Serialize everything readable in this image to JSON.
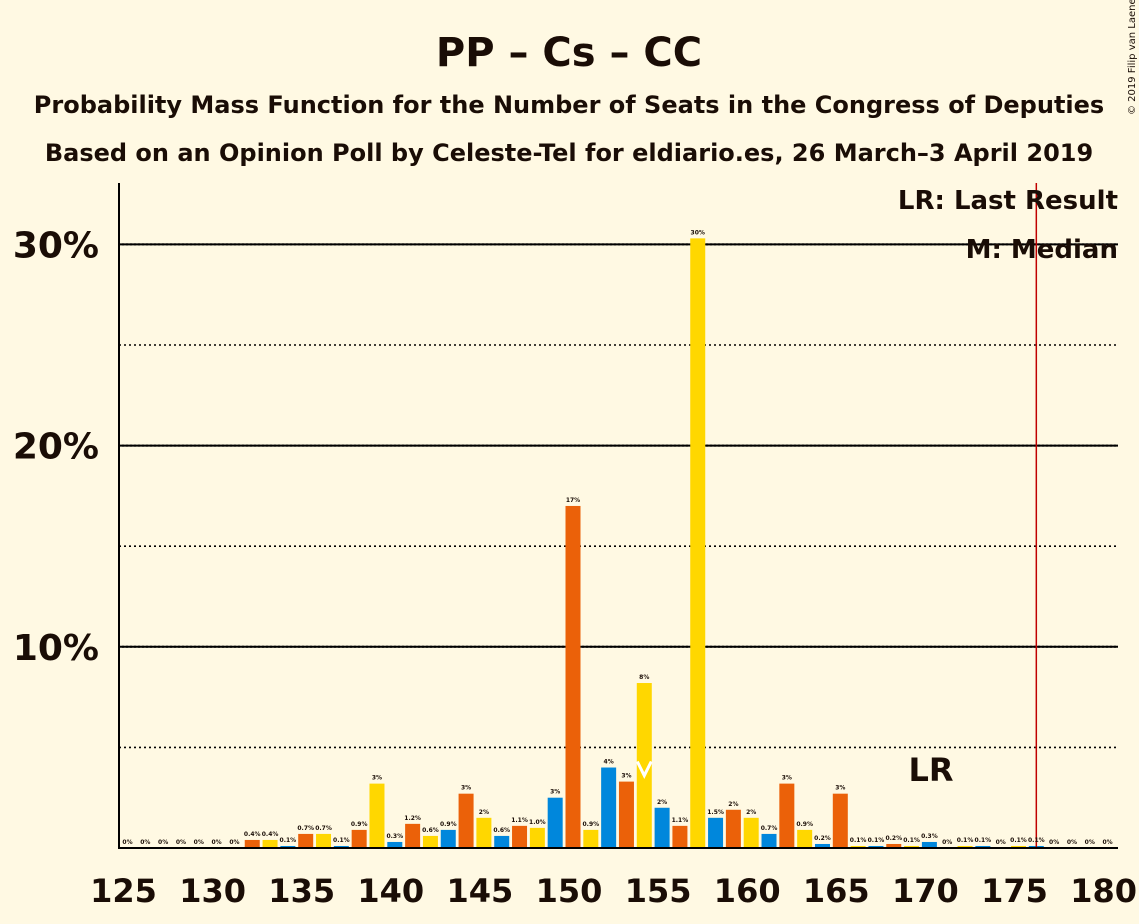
{
  "chart_data": {
    "type": "bar",
    "title": "PP – Cs – CC",
    "subtitle1": "Probability Mass Function for the Number of Seats in the Congress of Deputies",
    "subtitle2": "Based on an Opinion Poll by Celeste-Tel for eldiario.es, 26 March–3 April 2019",
    "copyright": "© 2019 Filip van Laenen",
    "legend": {
      "lr": "LR: Last Result",
      "median": "M: Median",
      "placement": "top-right"
    },
    "lr_label": "LR",
    "median_marker": "M",
    "last_result": 176,
    "median": 154,
    "xlim": [
      125,
      180
    ],
    "ylim": [
      0,
      33
    ],
    "x_ticks": [
      "125",
      "130",
      "135",
      "140",
      "145",
      "150",
      "155",
      "160",
      "165",
      "170",
      "175",
      "180"
    ],
    "y_ticks": [
      "10%",
      "20%",
      "30%"
    ],
    "colors": [
      "#0087DC",
      "#EB6109",
      "#FFD700"
    ],
    "x": [
      125,
      126,
      127,
      128,
      129,
      130,
      131,
      132,
      133,
      134,
      135,
      136,
      137,
      138,
      139,
      140,
      141,
      142,
      143,
      144,
      145,
      146,
      147,
      148,
      149,
      150,
      151,
      152,
      153,
      154,
      155,
      156,
      157,
      158,
      159,
      160,
      161,
      162,
      163,
      164,
      165,
      166,
      167,
      168,
      169,
      170,
      171,
      172,
      173,
      174,
      175,
      176,
      177,
      178,
      179,
      180
    ],
    "values": [
      0,
      0,
      0,
      0,
      0,
      0,
      0,
      0.4,
      0.4,
      0.1,
      0.7,
      0.7,
      0.1,
      0.9,
      3.2,
      0.3,
      1.2,
      0.6,
      0.9,
      2.7,
      1.5,
      0.6,
      1.1,
      1.0,
      2.5,
      17.0,
      0.9,
      4.0,
      3.3,
      8.2,
      2.0,
      1.1,
      30.3,
      1.5,
      1.9,
      1.5,
      0.7,
      3.2,
      0.9,
      0.2,
      2.7,
      0.1,
      0.1,
      0.2,
      0.1,
      0.3,
      0,
      0.1,
      0.1,
      0,
      0.1,
      0.1,
      0,
      0,
      0,
      0
    ],
    "labels": [
      "0%",
      "0%",
      "0%",
      "0%",
      "0%",
      "0%",
      "0%",
      "0.4%",
      "0.4%",
      "0.1%",
      "0.7%",
      "0.7%",
      "0.1%",
      "0.9%",
      "3%",
      "0.3%",
      "1.2%",
      "0.6%",
      "0.9%",
      "3%",
      "2%",
      "0.6%",
      "1.1%",
      "1.0%",
      "3%",
      "17%",
      "0.9%",
      "4%",
      "3%",
      "8%",
      "2%",
      "1.1%",
      "30%",
      "1.5%",
      "2%",
      "2%",
      "0.7%",
      "3%",
      "0.9%",
      "0.2%",
      "3%",
      "0.1%",
      "0.1%",
      "0.2%",
      "0.1%",
      "0.3%",
      "0%",
      "0.1%",
      "0.1%",
      "0%",
      "0.1%",
      "0.1%",
      "0%",
      "0%",
      "0%",
      "0%"
    ]
  }
}
